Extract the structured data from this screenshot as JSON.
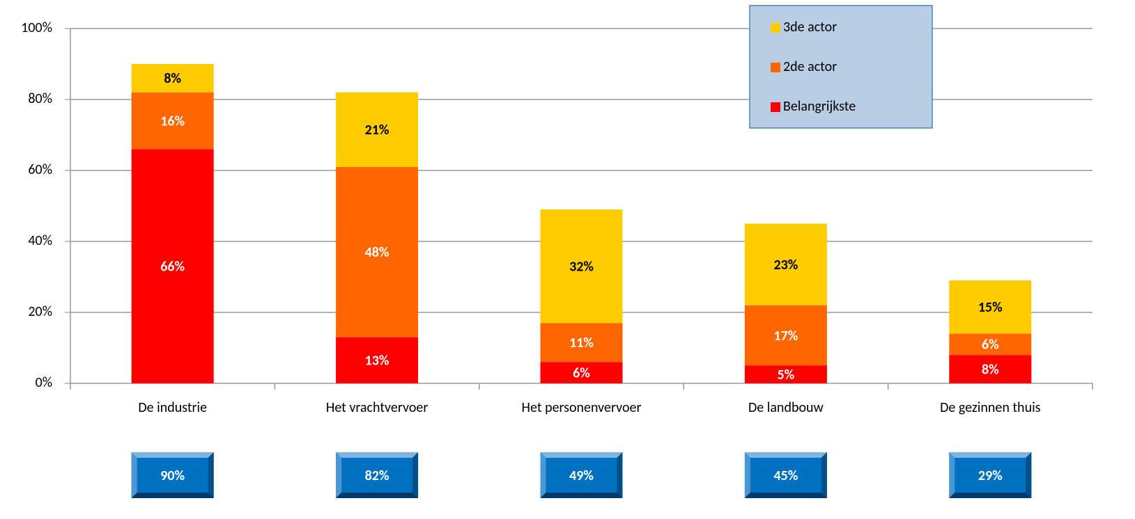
{
  "chart_data": {
    "type": "stacked_bar",
    "categories": [
      "De industrie",
      "Het vrachtvervoer",
      "Het personenvervoer",
      "De landbouw",
      "De gezinnen thuis"
    ],
    "series": [
      {
        "name": "Belangrijkste",
        "color": "#ff0000",
        "label_color": "#ffffff",
        "values": [
          66,
          13,
          6,
          5,
          8
        ],
        "value_labels": [
          "66%",
          "13%",
          "6%",
          "5%",
          "8%"
        ]
      },
      {
        "name": "2de actor",
        "color": "#ff6600",
        "label_color": "#ffffff",
        "values": [
          16,
          48,
          11,
          17,
          6
        ],
        "value_labels": [
          "16%",
          "48%",
          "11%",
          "17%",
          "6%"
        ]
      },
      {
        "name": "3de actor",
        "color": "#ffcc00",
        "label_color": "#000000",
        "values": [
          8,
          21,
          32,
          23,
          15
        ],
        "value_labels": [
          "8%",
          "21%",
          "32%",
          "23%",
          "15%"
        ]
      }
    ],
    "totals": {
      "values": [
        90,
        82,
        49,
        45,
        29
      ],
      "value_labels": [
        "90%",
        "82%",
        "49%",
        "45%",
        "29%"
      ],
      "color": "#0070c0"
    },
    "ylim": [
      0,
      100
    ],
    "yticks": [
      {
        "value": 0,
        "label": "0%"
      },
      {
        "value": 20,
        "label": "20%"
      },
      {
        "value": 40,
        "label": "40%"
      },
      {
        "value": 60,
        "label": "60%"
      },
      {
        "value": 80,
        "label": "80%"
      },
      {
        "value": 100,
        "label": "100%"
      }
    ],
    "grid": true,
    "legend": "top-right"
  }
}
